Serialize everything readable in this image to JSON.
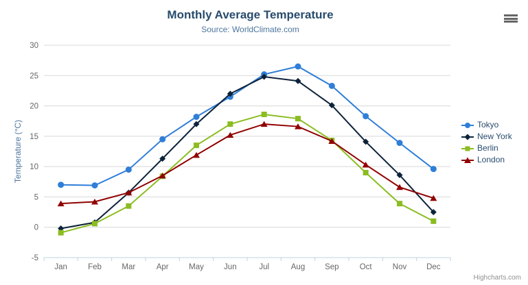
{
  "chart_data": {
    "type": "line",
    "title": "Monthly Average Temperature",
    "subtitle": "Source: WorldClimate.com",
    "categories": [
      "Jan",
      "Feb",
      "Mar",
      "Apr",
      "May",
      "Jun",
      "Jul",
      "Aug",
      "Sep",
      "Oct",
      "Nov",
      "Dec"
    ],
    "series": [
      {
        "name": "Tokyo",
        "color": "#2f7ed8",
        "marker": "circle",
        "values": [
          7.0,
          6.9,
          9.5,
          14.5,
          18.2,
          21.5,
          25.2,
          26.5,
          23.3,
          18.3,
          13.9,
          9.6
        ]
      },
      {
        "name": "New York",
        "color": "#0d233a",
        "marker": "diamond",
        "values": [
          -0.2,
          0.8,
          5.7,
          11.3,
          17.0,
          22.0,
          24.8,
          24.1,
          20.1,
          14.1,
          8.6,
          2.5
        ]
      },
      {
        "name": "Berlin",
        "color": "#8bbc21",
        "marker": "square",
        "values": [
          -0.9,
          0.6,
          3.5,
          8.4,
          13.5,
          17.0,
          18.6,
          17.9,
          14.3,
          9.0,
          3.9,
          1.0
        ]
      },
      {
        "name": "London",
        "color": "#910000",
        "marker": "triangle",
        "values": [
          3.9,
          4.2,
          5.7,
          8.5,
          11.9,
          15.2,
          17.0,
          16.6,
          14.2,
          10.3,
          6.6,
          4.8
        ]
      }
    ],
    "xlabel": "",
    "ylabel": "Temperature (°C)",
    "ylim": [
      -5,
      30
    ],
    "ytick_interval": 5,
    "yticks": [
      -5,
      0,
      5,
      10,
      15,
      20,
      25,
      30
    ],
    "grid": true,
    "legend_position": "right"
  },
  "colors": {
    "title": "#274b6d",
    "subtitle": "#4d759e",
    "axis_title": "#4d759e",
    "axis_labels": "#666666",
    "gridline": "#d8d8d8",
    "axis_line": "#c0d0e0",
    "menu_icon": "#666666",
    "credits": "#909090"
  },
  "menu": {
    "icon": "hamburger-icon"
  },
  "credits": {
    "label": "Highcharts.com"
  }
}
